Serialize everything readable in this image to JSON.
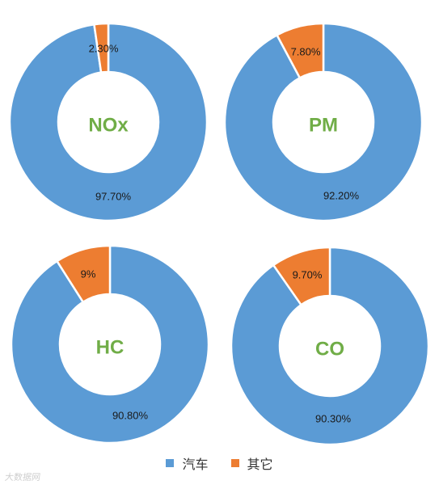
{
  "chart_data": [
    {
      "type": "donut",
      "center_label": "NOx",
      "slices": [
        {
          "name": "汽车",
          "value": 97.7,
          "label": "97.70%"
        },
        {
          "name": "其它",
          "value": 2.3,
          "label": "2.30%"
        }
      ]
    },
    {
      "type": "donut",
      "center_label": "PM",
      "slices": [
        {
          "name": "汽车",
          "value": 92.2,
          "label": "92.20%"
        },
        {
          "name": "其它",
          "value": 7.8,
          "label": "7.80%"
        }
      ]
    },
    {
      "type": "donut",
      "center_label": "HC",
      "slices": [
        {
          "name": "汽车",
          "value": 90.8,
          "label": "90.80%"
        },
        {
          "name": "其它",
          "value": 9.0,
          "label": "9%"
        }
      ]
    },
    {
      "type": "donut",
      "center_label": "CO",
      "slices": [
        {
          "name": "汽车",
          "value": 90.3,
          "label": "90.30%"
        },
        {
          "name": "其它",
          "value": 9.7,
          "label": "9.70%"
        }
      ]
    }
  ],
  "legend": {
    "placement": "bottom-center",
    "items": [
      {
        "label": "汽车",
        "color": "#5b9bd5"
      },
      {
        "label": "其它",
        "color": "#ed7d31"
      }
    ]
  },
  "colors": {
    "汽车": "#5b9bd5",
    "其它": "#ed7d31",
    "center_label": "#70ad47",
    "slice_border": "#ffffff"
  },
  "watermark": "大数据网"
}
